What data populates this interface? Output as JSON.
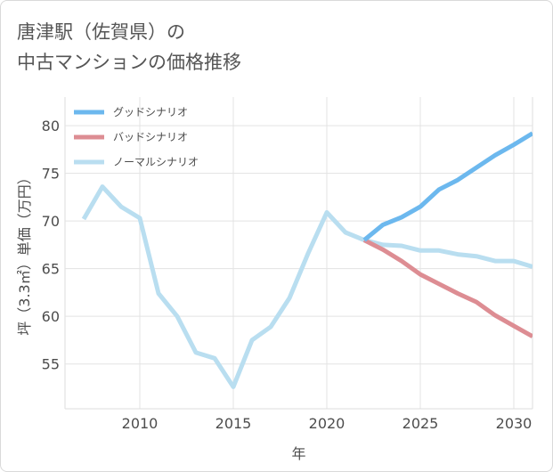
{
  "chart_data": {
    "type": "line",
    "title": "唐津駅（佐賀県）の\n中古マンションの価格推移",
    "xlabel": "年",
    "ylabel": "坪（3.3㎡）単価（万円）",
    "xlim": [
      2006,
      2031
    ],
    "ylim": [
      50.3,
      83
    ],
    "x_ticks": [
      2010,
      2015,
      2020,
      2025,
      2030
    ],
    "y_ticks": [
      55,
      60,
      65,
      70,
      75,
      80
    ],
    "grid": true,
    "legend_position": "top-left",
    "series": [
      {
        "name": "グッドシナリオ",
        "color": "#6cb8ee",
        "x": [
          2022,
          2023,
          2024,
          2025,
          2026,
          2027,
          2028,
          2029,
          2030,
          2031
        ],
        "y": [
          68.0,
          69.6,
          70.4,
          71.5,
          73.3,
          74.3,
          75.6,
          76.9,
          78.0,
          79.2
        ]
      },
      {
        "name": "バッドシナリオ",
        "color": "#dd8d93",
        "x": [
          2022,
          2023,
          2024,
          2025,
          2026,
          2027,
          2028,
          2029,
          2030,
          2031
        ],
        "y": [
          68.0,
          67.0,
          65.8,
          64.4,
          63.4,
          62.4,
          61.5,
          60.1,
          59.0,
          57.9
        ]
      },
      {
        "name": "ノーマルシナリオ",
        "color": "#b9def0",
        "x": [
          2007,
          2008,
          2009,
          2010,
          2011,
          2012,
          2013,
          2014,
          2015,
          2016,
          2017,
          2018,
          2019,
          2020,
          2021,
          2022,
          2023,
          2024,
          2025,
          2026,
          2027,
          2028,
          2029,
          2030,
          2031
        ],
        "y": [
          70.2,
          73.6,
          71.5,
          70.3,
          62.4,
          60.0,
          56.2,
          55.6,
          52.6,
          57.5,
          58.9,
          61.9,
          66.6,
          70.9,
          68.8,
          68.0,
          67.5,
          67.4,
          66.9,
          66.9,
          66.5,
          66.3,
          65.8,
          65.8,
          65.2
        ]
      }
    ]
  }
}
